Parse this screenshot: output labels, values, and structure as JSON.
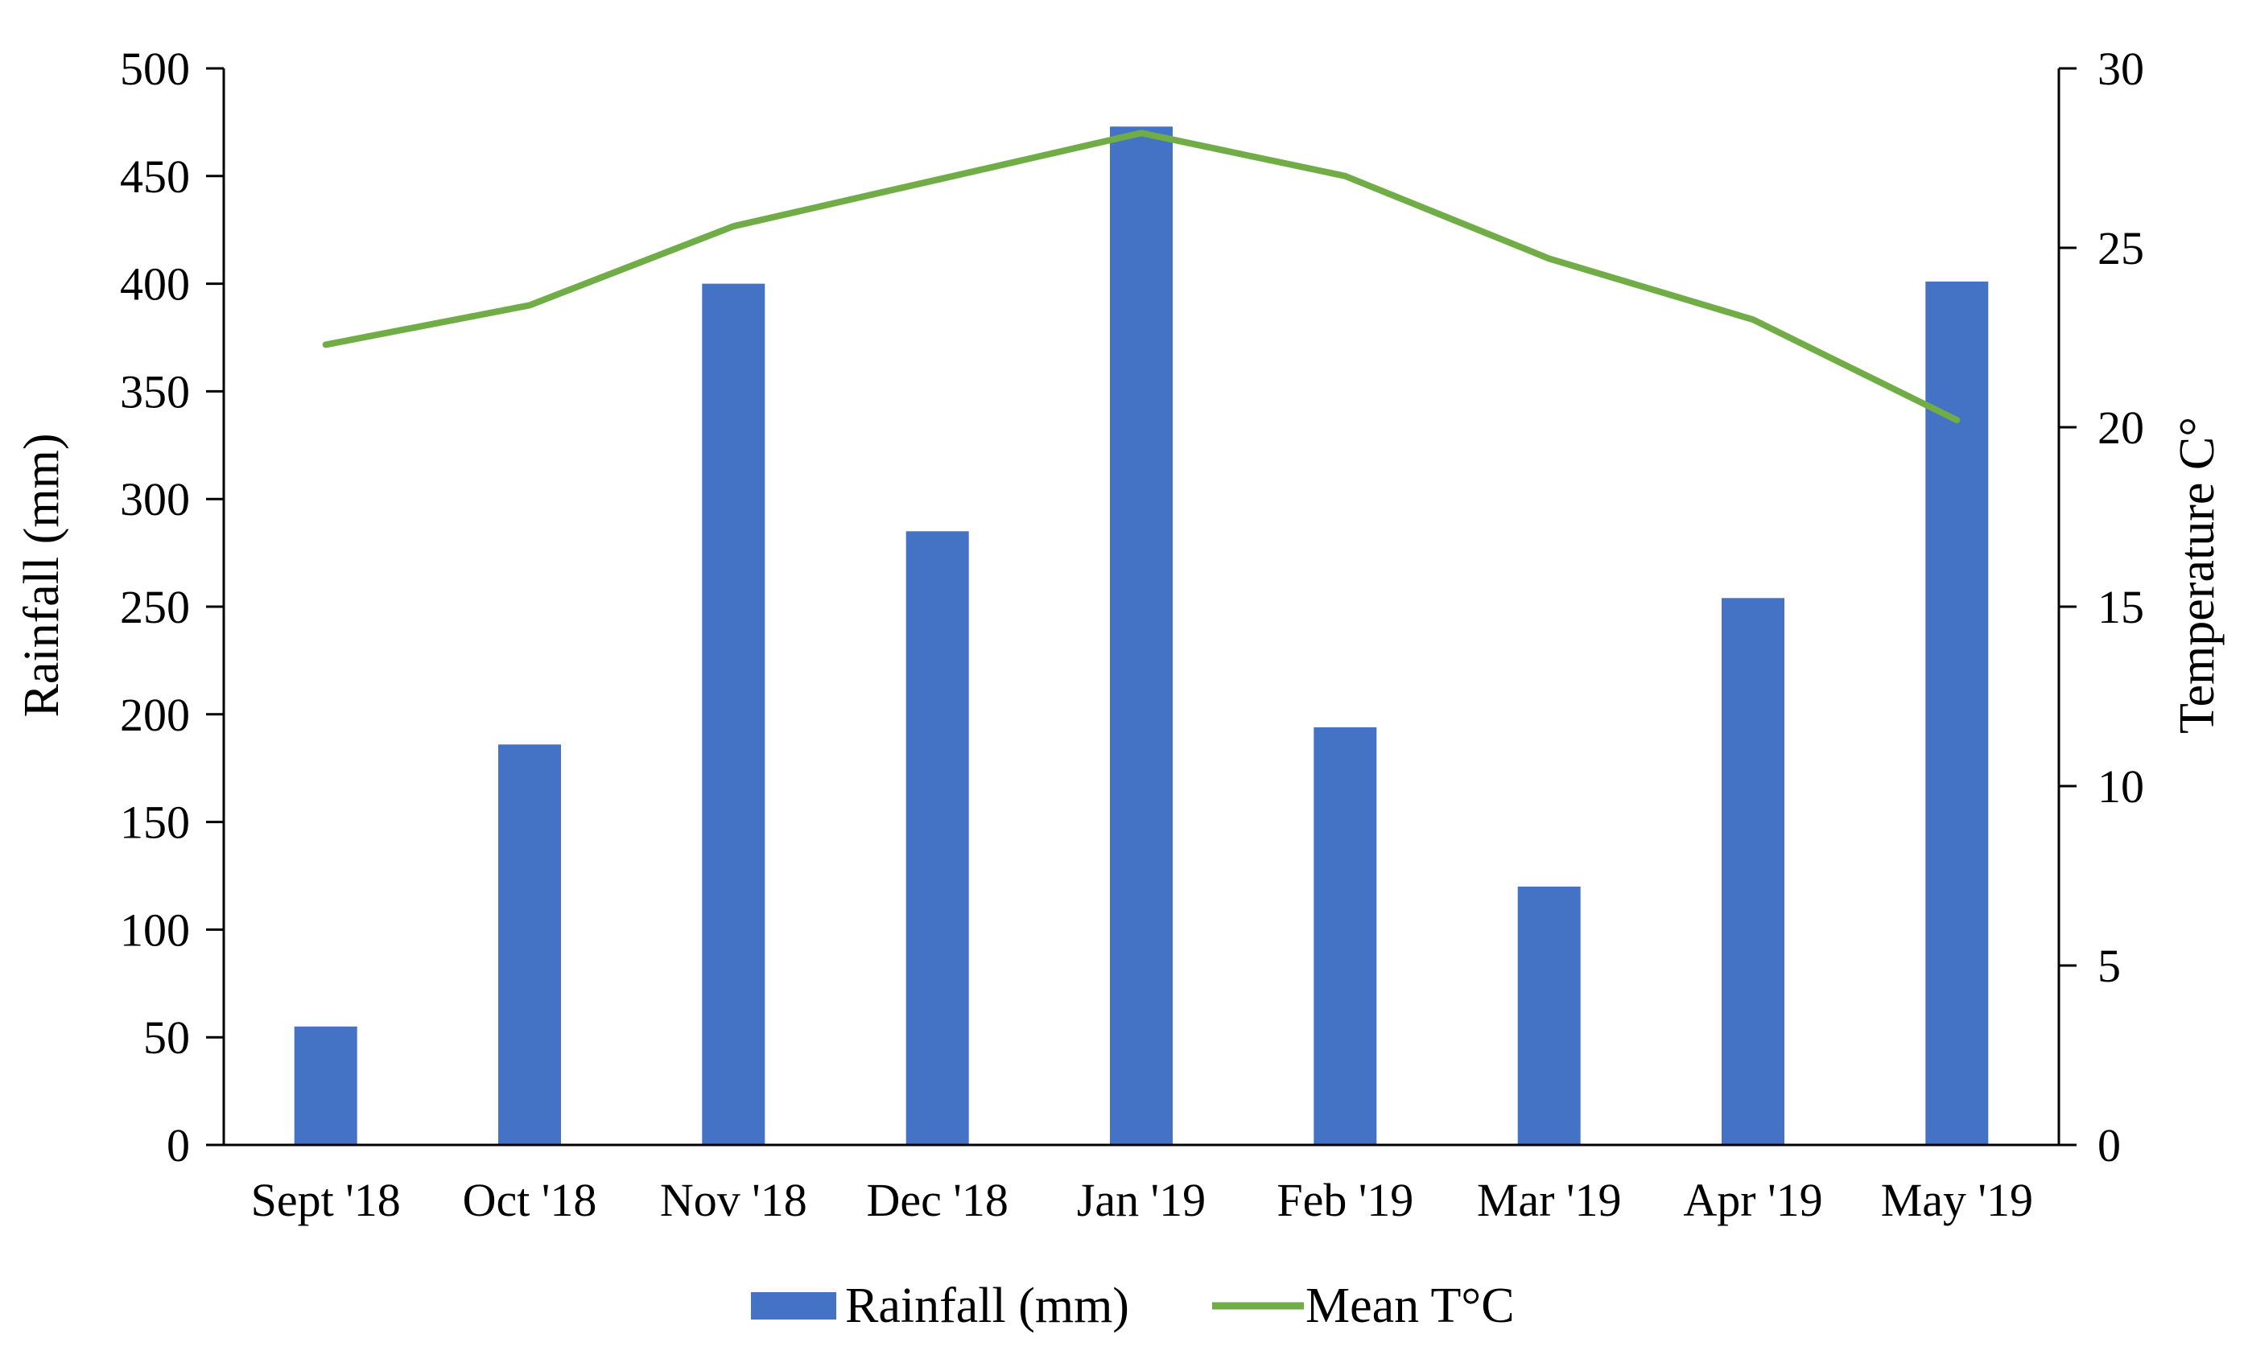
{
  "chart_data": {
    "type": "bar",
    "categories": [
      "Sept '18",
      "Oct '18",
      "Nov '18",
      "Dec '18",
      "Jan '19",
      "Feb '19",
      "Mar '19",
      "Apr '19",
      "May '19"
    ],
    "series": [
      {
        "name": "Rainfall (mm)",
        "type": "bar",
        "axis": "left",
        "color": "#4472C4",
        "values": [
          55,
          186,
          400,
          285,
          473,
          194,
          120,
          254,
          401
        ]
      },
      {
        "name": "Mean T°C",
        "type": "line",
        "axis": "right",
        "color": "#70AD47",
        "values": [
          22.3,
          23.4,
          25.6,
          26.9,
          28.2,
          27.0,
          24.7,
          23.0,
          20.2
        ]
      }
    ],
    "ylabel": "Rainfall (mm)",
    "y2label": "Temperature C°",
    "ylim": [
      0,
      500
    ],
    "y2lim": [
      0,
      30
    ],
    "yticks": [
      0,
      50,
      100,
      150,
      200,
      250,
      300,
      350,
      400,
      450,
      500
    ],
    "y2ticks": [
      0,
      5,
      10,
      15,
      20,
      25,
      30
    ],
    "grid": false,
    "legend_position": "bottom"
  }
}
